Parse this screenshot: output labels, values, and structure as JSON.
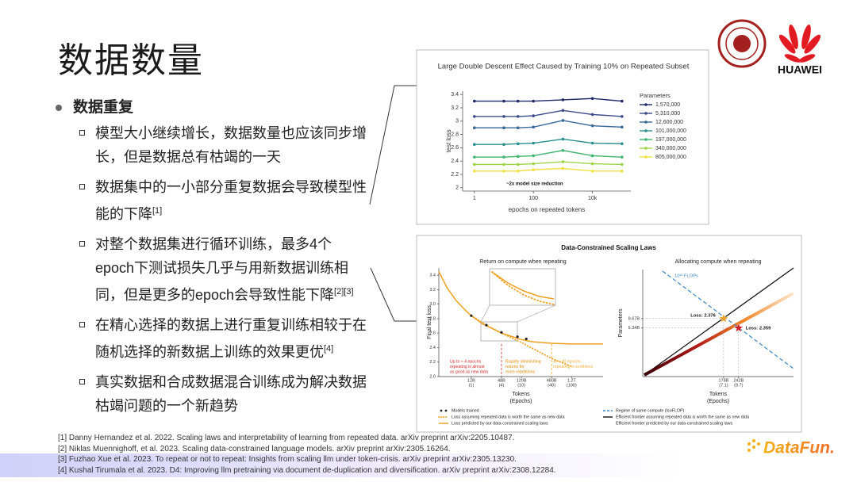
{
  "header": {
    "title": "数据数量",
    "brand": "HUAWEI"
  },
  "section": {
    "heading": "数据重复",
    "items": [
      {
        "text": "模型大小继续增长，数据数量也应该同步增长，但是数据总有枯竭的一天"
      },
      {
        "text": "数据集中的一小部分重复数据会导致模型性能的下降",
        "ref": "[1]"
      },
      {
        "text": "对整个数据集进行循环训练，最多4个epoch下测试损失几乎与用新数据训练相同，但是更多的epoch会导致性能下降",
        "ref": "[2][3]"
      },
      {
        "text": "在精心选择的数据上进行重复训练相较于在随机选择的新数据上训练的效果更优",
        "ref": "[4]"
      },
      {
        "text": "真实数据和合成数据混合训练成为解决数据枯竭问题的一个新趋势"
      }
    ]
  },
  "references": [
    "[1] Danny Hernandez et al. 2022. Scaling laws and interpretability of learning from repeated data. arXiv preprint arXiv:2205.10487.",
    "[2] Niklas Muennighoff, et al. 2023. Scaling data-constrained language models. arXiv preprint arXiv:2305.16264.",
    "[3] Fuzhao Xue et al. 2023. To repeat or not to repeat: Insights from scaling llm under token-crisis. arXiv preprint arXiv:2305.13230.",
    "[4] Kushal Tirumala et al. 2023. D4: Improving llm pretraining via document de-duplication and diversification. arXiv preprint arXiv:2308.12284."
  ],
  "footer": {
    "brand": "DataFun."
  },
  "figures": [
    {
      "type": "line",
      "title": "Large Double Descent Effect Caused by Training 10% on Repeated Subset",
      "x_label": "epochs on repeated tokens",
      "y_label": "test loss",
      "xscale": "log",
      "x": [
        1,
        10,
        30,
        100,
        1000,
        10000,
        100000
      ],
      "xlim": [
        0.4,
        200000
      ],
      "xticks": [
        1,
        100,
        {
          "value": 10000,
          "label": "10k"
        }
      ],
      "ylim": [
        1.95,
        3.45
      ],
      "yticks": [
        2,
        2.2,
        2.4,
        2.6,
        2.8,
        3,
        3.2,
        3.4
      ],
      "legend_title": "Parameters",
      "annotation": "~2x model size reduction",
      "series": [
        {
          "name": "1,570,000",
          "color": "#1f2a6b",
          "values": [
            3.3,
            3.3,
            3.3,
            3.3,
            3.32,
            3.34,
            3.3
          ]
        },
        {
          "name": "5,310,000",
          "color": "#3a4a8c",
          "values": [
            3.07,
            3.07,
            3.07,
            3.08,
            3.16,
            3.1,
            3.07
          ]
        },
        {
          "name": "12,600,000",
          "color": "#37689c",
          "values": [
            2.9,
            2.9,
            2.9,
            2.91,
            3.01,
            2.93,
            2.91
          ]
        },
        {
          "name": "101,000,000",
          "color": "#2a8f8e",
          "values": [
            2.65,
            2.65,
            2.66,
            2.67,
            2.73,
            2.67,
            2.66
          ]
        },
        {
          "name": "197,000,000",
          "color": "#3fb56f",
          "values": [
            2.46,
            2.46,
            2.47,
            2.48,
            2.56,
            2.48,
            2.46
          ]
        },
        {
          "name": "340,000,000",
          "color": "#9fd44a",
          "values": [
            2.35,
            2.35,
            2.35,
            2.36,
            2.39,
            2.36,
            2.35
          ]
        },
        {
          "name": "805,000,000",
          "color": "#f0e040",
          "values": [
            2.25,
            2.25,
            2.25,
            2.27,
            2.29,
            2.25,
            2.25
          ]
        }
      ]
    },
    {
      "type": "panels",
      "title": "Data-Constrained Scaling Laws",
      "panels": [
        {
          "subtitle": "Return on compute when repeating",
          "y_label": "Final test loss",
          "x_label": "Tokens",
          "x_label_sub": "(Epochs)",
          "xscale": "log",
          "xlim": [
            2.7,
            5100
          ],
          "ylim": [
            2.0,
            3.5
          ],
          "yticks": [
            {
              "value": 2,
              "label": "2.0"
            },
            2.2,
            2.4,
            2.6,
            2.8,
            {
              "value": 3,
              "label": "3.0"
            },
            3.2,
            3.4
          ],
          "xticks": [
            {
              "value": 12,
              "label": "12B"
            },
            {
              "value": 48,
              "label": "48B"
            },
            {
              "value": 120,
              "label": "120B"
            },
            {
              "value": 480,
              "label": "480B"
            },
            {
              "value": 1200,
              "label": "1.2T"
            }
          ],
          "xtick_epochs": [
            "(1)",
            "(4)",
            "(10)",
            "(40)",
            "(100)"
          ],
          "series": [
            {
              "style": "solid",
              "color": "#f0a020",
              "x": [
                2.7,
                4,
                6,
                9,
                12,
                20,
                30,
                48,
                80,
                120,
                200,
                480,
                1200,
                3000,
                5100
              ],
              "values": [
                3.45,
                3.22,
                3.05,
                2.92,
                2.84,
                2.73,
                2.67,
                2.6,
                2.55,
                2.51,
                2.48,
                2.46,
                2.45,
                2.45,
                2.45
              ]
            },
            {
              "style": "dotted",
              "color": "#f0a020",
              "x": [
                12,
                24,
                48,
                120,
                480,
                1200
              ],
              "values": [
                2.84,
                2.71,
                2.6,
                2.47,
                2.25,
                2.14
              ]
            },
            {
              "style": "points",
              "color": "#222222",
              "x": [
                12,
                24,
                48,
                100,
                150
              ],
              "values": [
                2.84,
                2.71,
                2.61,
                2.55,
                2.52
              ]
            }
          ],
          "boundaries": [
            {
              "value": 48,
              "color": "#d62728"
            },
            {
              "value": 480,
              "color": "#f0a020"
            }
          ],
          "notes": [
            {
              "color": "#d62728",
              "lines": [
                "Up to ≈ 4 epochs",
                "repeating is almost",
                "as good as new data"
              ]
            },
            {
              "color": "#e08a00",
              "lines": [
                "Rapidly diminishing",
                "returns for",
                "more repetitions"
              ]
            },
            {
              "color": "#f5b041",
              "lines": [
                "At ≈ 40 epochs,",
                "repeating is worthless"
              ]
            }
          ]
        },
        {
          "subtitle": "Allocating compute when repeating",
          "y_label": "Parameters",
          "x_label": "Tokens",
          "x_label_sub": "(Epochs)",
          "xscale": "log",
          "yscale": "log",
          "xlim": [
            34,
            745
          ],
          "ylim": [
            1.28,
            43.6
          ],
          "xticks": [
            {
              "value": 178,
              "label": "178B"
            },
            {
              "value": 242,
              "label": "242B"
            }
          ],
          "xtick_epochs": [
            "(7.1)",
            "(9.7)"
          ],
          "yticks": [
            {
              "value": 8.67,
              "label": "8.67B"
            },
            {
              "value": 6.34,
              "label": "6.34B"
            }
          ],
          "annotation": "10²² FLOPs",
          "points": [
            {
              "x": 178,
              "y": 8.67,
              "label": "Loss: 2.376",
              "color": "#f0a020"
            },
            {
              "x": 242,
              "y": 6.34,
              "label": "Loss: 2.359",
              "color": "#d01020"
            }
          ]
        }
      ],
      "legend": [
        {
          "style": "points",
          "color": "#222222",
          "label": "Models trained"
        },
        {
          "style": "dotted",
          "color": "#f0a020",
          "label": "Loss assuming repeated data is worth the same as new data"
        },
        {
          "style": "solid",
          "color": "#f0a020",
          "label": "Loss predicted by our data-constrained scaling laws"
        },
        {
          "style": "dashed",
          "color": "#3a86c8",
          "label": "Regime of same compute (IsoFLOP)"
        },
        {
          "style": "solid",
          "color": "#111111",
          "label": "Efficient frontier assuming repeated data is worth the same as new data"
        },
        {
          "style": "gradient",
          "color": "#d01020",
          "label": "Efficient frontier predicted by our data-constrained scaling laws"
        }
      ]
    }
  ]
}
